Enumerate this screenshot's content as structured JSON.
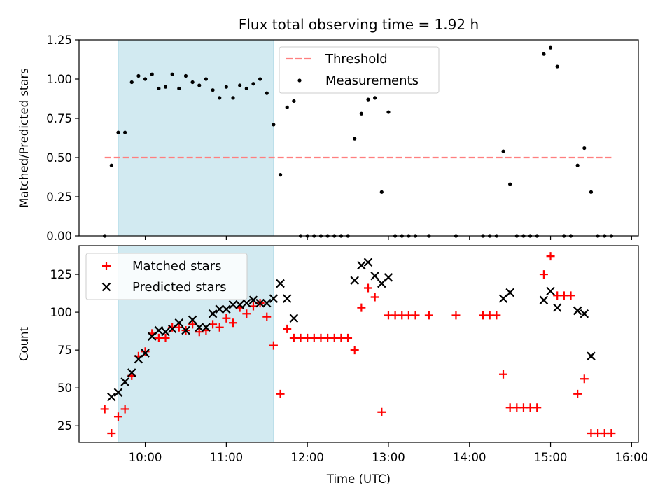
{
  "chart_data": [
    {
      "type": "scatter",
      "title": "Flux total observing time = 1.92 h",
      "xlabel": "",
      "ylabel": "Matched/Predicted stars",
      "xlim": [
        "09:11",
        "16:05"
      ],
      "ylim": [
        0,
        1.25
      ],
      "yticks": [
        "0.00",
        "0.25",
        "0.50",
        "0.75",
        "1.00",
        "1.25"
      ],
      "shaded_interval": [
        "09:40",
        "11:35"
      ],
      "shaded_color": "#add8e6",
      "legend_position": "top-center",
      "series": [
        {
          "name": "Threshold",
          "style": "dashed-line",
          "color": "#ff7f7f",
          "x": [
            "09:30",
            "15:45"
          ],
          "y": [
            0.5,
            0.5
          ]
        },
        {
          "name": "Measurements",
          "style": "dot",
          "color": "#000000",
          "points": [
            [
              "09:30",
              0.0
            ],
            [
              "09:35",
              0.45
            ],
            [
              "09:40",
              0.66
            ],
            [
              "09:45",
              0.66
            ],
            [
              "09:50",
              0.98
            ],
            [
              "09:55",
              1.02
            ],
            [
              "10:00",
              1.0
            ],
            [
              "10:05",
              1.03
            ],
            [
              "10:10",
              0.94
            ],
            [
              "10:15",
              0.95
            ],
            [
              "10:20",
              1.03
            ],
            [
              "10:25",
              0.94
            ],
            [
              "10:30",
              1.02
            ],
            [
              "10:35",
              0.98
            ],
            [
              "10:40",
              0.96
            ],
            [
              "10:45",
              1.0
            ],
            [
              "10:50",
              0.93
            ],
            [
              "10:55",
              0.88
            ],
            [
              "11:00",
              0.95
            ],
            [
              "11:05",
              0.88
            ],
            [
              "11:10",
              0.96
            ],
            [
              "11:15",
              0.94
            ],
            [
              "11:20",
              0.97
            ],
            [
              "11:25",
              1.0
            ],
            [
              "11:30",
              0.91
            ],
            [
              "11:35",
              0.71
            ],
            [
              "11:40",
              0.39
            ],
            [
              "11:45",
              0.82
            ],
            [
              "11:50",
              0.86
            ],
            [
              "11:55",
              0.0
            ],
            [
              "12:00",
              0.0
            ],
            [
              "12:05",
              0.0
            ],
            [
              "12:10",
              0.0
            ],
            [
              "12:15",
              0.0
            ],
            [
              "12:20",
              0.0
            ],
            [
              "12:25",
              0.0
            ],
            [
              "12:30",
              0.0
            ],
            [
              "12:35",
              0.62
            ],
            [
              "12:40",
              0.78
            ],
            [
              "12:45",
              0.87
            ],
            [
              "12:50",
              0.88
            ],
            [
              "12:55",
              0.28
            ],
            [
              "13:00",
              0.79
            ],
            [
              "13:05",
              0.0
            ],
            [
              "13:10",
              0.0
            ],
            [
              "13:15",
              0.0
            ],
            [
              "13:20",
              0.0
            ],
            [
              "13:30",
              0.0
            ],
            [
              "13:50",
              0.0
            ],
            [
              "14:10",
              0.0
            ],
            [
              "14:15",
              0.0
            ],
            [
              "14:20",
              0.0
            ],
            [
              "14:25",
              0.54
            ],
            [
              "14:30",
              0.33
            ],
            [
              "14:35",
              0.0
            ],
            [
              "14:40",
              0.0
            ],
            [
              "14:45",
              0.0
            ],
            [
              "14:50",
              0.0
            ],
            [
              "14:55",
              1.16
            ],
            [
              "15:00",
              1.2
            ],
            [
              "15:05",
              1.08
            ],
            [
              "15:10",
              0.0
            ],
            [
              "15:15",
              0.0
            ],
            [
              "15:20",
              0.45
            ],
            [
              "15:25",
              0.56
            ],
            [
              "15:30",
              0.28
            ],
            [
              "15:35",
              0.0
            ],
            [
              "15:40",
              0.0
            ],
            [
              "15:45",
              0.0
            ]
          ]
        }
      ]
    },
    {
      "type": "scatter",
      "title": "",
      "xlabel": "Time (UTC)",
      "ylabel": "Count",
      "xlim": [
        "09:11",
        "16:05"
      ],
      "ylim": [
        14,
        144
      ],
      "xticks": [
        "10:00",
        "11:00",
        "12:00",
        "13:00",
        "14:00",
        "15:00",
        "16:00"
      ],
      "yticks": [
        "25",
        "50",
        "75",
        "100",
        "125"
      ],
      "shaded_interval": [
        "09:40",
        "11:35"
      ],
      "shaded_color": "#add8e6",
      "legend_position": "top-left",
      "series": [
        {
          "name": "Matched stars",
          "style": "plus",
          "color": "#ff0000",
          "points": [
            [
              "09:30",
              36
            ],
            [
              "09:35",
              20
            ],
            [
              "09:40",
              31
            ],
            [
              "09:45",
              36
            ],
            [
              "09:50",
              58
            ],
            [
              "09:55",
              71
            ],
            [
              "10:00",
              74
            ],
            [
              "10:05",
              86
            ],
            [
              "10:10",
              83
            ],
            [
              "10:15",
              83
            ],
            [
              "10:20",
              90
            ],
            [
              "10:25",
              90
            ],
            [
              "10:30",
              88
            ],
            [
              "10:35",
              92
            ],
            [
              "10:40",
              87
            ],
            [
              "10:45",
              88
            ],
            [
              "10:50",
              92
            ],
            [
              "10:55",
              90
            ],
            [
              "11:00",
              96
            ],
            [
              "11:05",
              93
            ],
            [
              "11:10",
              103
            ],
            [
              "11:15",
              99
            ],
            [
              "11:20",
              104
            ],
            [
              "11:25",
              106
            ],
            [
              "11:30",
              97
            ],
            [
              "11:35",
              78
            ],
            [
              "11:40",
              46
            ],
            [
              "11:45",
              89
            ],
            [
              "11:50",
              83
            ],
            [
              "11:55",
              83
            ],
            [
              "12:00",
              83
            ],
            [
              "12:05",
              83
            ],
            [
              "12:10",
              83
            ],
            [
              "12:15",
              83
            ],
            [
              "12:20",
              83
            ],
            [
              "12:25",
              83
            ],
            [
              "12:30",
              83
            ],
            [
              "12:35",
              75
            ],
            [
              "12:40",
              103
            ],
            [
              "12:45",
              116
            ],
            [
              "12:50",
              110
            ],
            [
              "12:55",
              34
            ],
            [
              "13:00",
              98
            ],
            [
              "13:05",
              98
            ],
            [
              "13:10",
              98
            ],
            [
              "13:15",
              98
            ],
            [
              "13:20",
              98
            ],
            [
              "13:30",
              98
            ],
            [
              "13:50",
              98
            ],
            [
              "14:10",
              98
            ],
            [
              "14:15",
              98
            ],
            [
              "14:20",
              98
            ],
            [
              "14:25",
              59
            ],
            [
              "14:30",
              37
            ],
            [
              "14:35",
              37
            ],
            [
              "14:40",
              37
            ],
            [
              "14:45",
              37
            ],
            [
              "14:50",
              37
            ],
            [
              "14:55",
              125
            ],
            [
              "15:00",
              137
            ],
            [
              "15:05",
              111
            ],
            [
              "15:10",
              111
            ],
            [
              "15:15",
              111
            ],
            [
              "15:20",
              46
            ],
            [
              "15:25",
              56
            ],
            [
              "15:30",
              20
            ],
            [
              "15:35",
              20
            ],
            [
              "15:40",
              20
            ],
            [
              "15:45",
              20
            ]
          ]
        },
        {
          "name": "Predicted stars",
          "style": "x",
          "color": "#000000",
          "points": [
            [
              "09:35",
              44
            ],
            [
              "09:40",
              47
            ],
            [
              "09:45",
              54
            ],
            [
              "09:50",
              60
            ],
            [
              "09:55",
              69
            ],
            [
              "10:00",
              73
            ],
            [
              "10:05",
              84
            ],
            [
              "10:10",
              88
            ],
            [
              "10:15",
              87
            ],
            [
              "10:20",
              89
            ],
            [
              "10:25",
              93
            ],
            [
              "10:30",
              88
            ],
            [
              "10:35",
              95
            ],
            [
              "10:40",
              90
            ],
            [
              "10:45",
              90
            ],
            [
              "10:50",
              99
            ],
            [
              "10:55",
              102
            ],
            [
              "11:00",
              102
            ],
            [
              "11:05",
              105
            ],
            [
              "11:10",
              105
            ],
            [
              "11:15",
              106
            ],
            [
              "11:20",
              108
            ],
            [
              "11:25",
              106
            ],
            [
              "11:30",
              106
            ],
            [
              "11:35",
              109
            ],
            [
              "11:40",
              119
            ],
            [
              "11:45",
              109
            ],
            [
              "11:50",
              96
            ],
            [
              "12:35",
              121
            ],
            [
              "12:40",
              131
            ],
            [
              "12:45",
              133
            ],
            [
              "12:50",
              124
            ],
            [
              "12:55",
              119
            ],
            [
              "13:00",
              123
            ],
            [
              "14:25",
              109
            ],
            [
              "14:30",
              113
            ],
            [
              "14:55",
              108
            ],
            [
              "15:00",
              114
            ],
            [
              "15:05",
              103
            ],
            [
              "15:20",
              101
            ],
            [
              "15:25",
              99
            ],
            [
              "15:30",
              71
            ]
          ]
        }
      ]
    }
  ]
}
